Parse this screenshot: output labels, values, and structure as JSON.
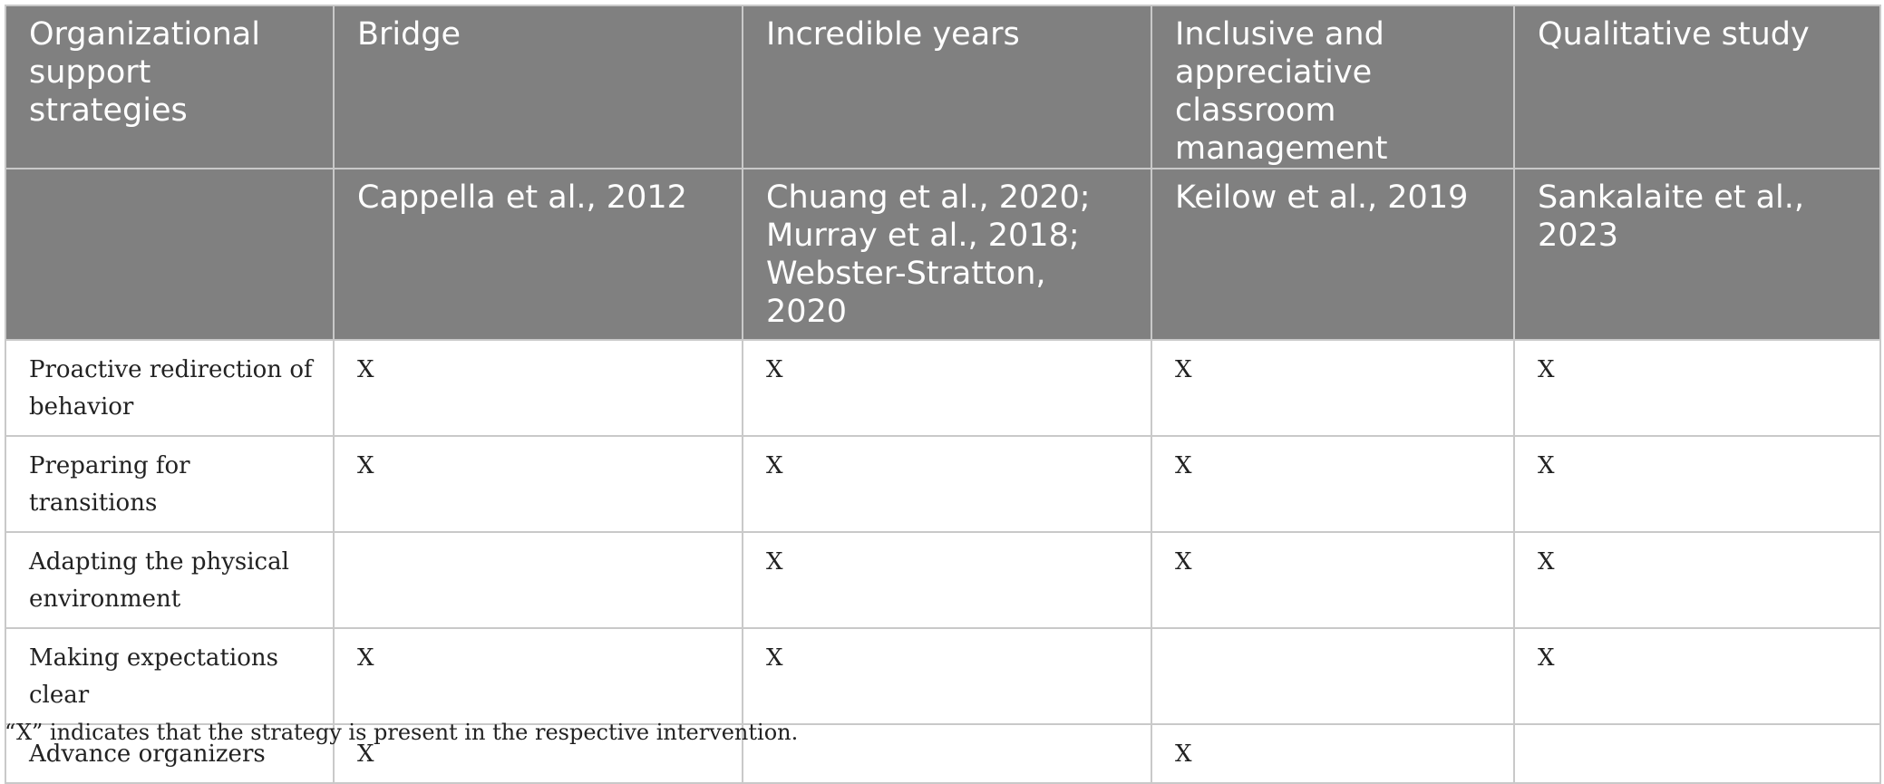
{
  "table": {
    "header_row_1": [
      "Organizational support strategies",
      "Bridge",
      "Incredible years",
      "Inclusive and appreciative classroom management",
      "Qualitative study"
    ],
    "header_row_2": [
      "",
      "Cappella et al., 2012",
      "Chuang et al., 2020; Murray et al., 2018; Webster-Stratton, 2020",
      "Keilow et al., 2019",
      "Sankalaite et al., 2023"
    ],
    "rows": [
      {
        "strategy": "Proactive redirection of behavior",
        "cells": [
          "X",
          "X",
          "X",
          "X"
        ]
      },
      {
        "strategy": "Preparing for transitions",
        "cells": [
          "X",
          "X",
          "X",
          "X"
        ]
      },
      {
        "strategy": "Adapting the physical environment",
        "cells": [
          "",
          "X",
          "X",
          "X"
        ]
      },
      {
        "strategy": "Making expectations clear",
        "cells": [
          "X",
          "X",
          "",
          "X"
        ]
      },
      {
        "strategy": "Advance organizers",
        "cells": [
          "X",
          "",
          "X",
          ""
        ]
      }
    ]
  },
  "footnote": "“X” indicates that the strategy is present in the respective intervention.",
  "colors": {
    "header_background": "#808080",
    "header_text": "#ffffff",
    "grid_border": "#c9c9c9"
  }
}
